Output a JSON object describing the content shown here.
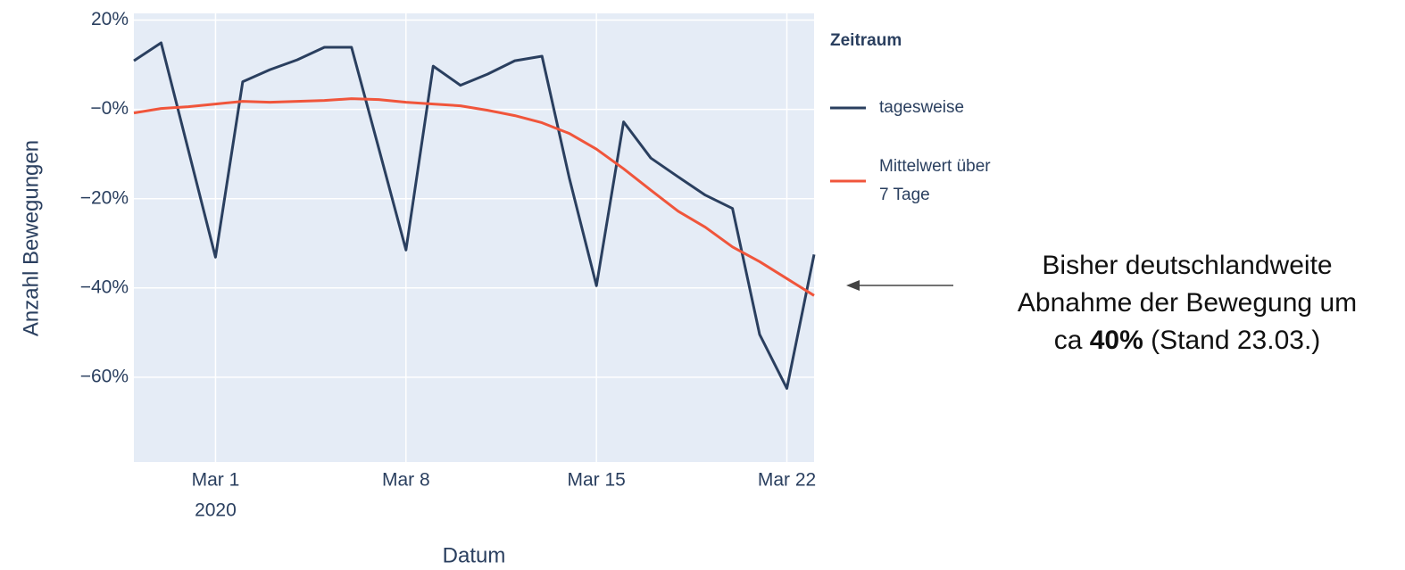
{
  "chart_data": {
    "type": "line",
    "x": [
      "2020-02-27",
      "2020-02-28",
      "2020-02-29",
      "2020-03-01",
      "2020-03-02",
      "2020-03-03",
      "2020-03-04",
      "2020-03-05",
      "2020-03-06",
      "2020-03-07",
      "2020-03-08",
      "2020-03-09",
      "2020-03-10",
      "2020-03-11",
      "2020-03-12",
      "2020-03-13",
      "2020-03-14",
      "2020-03-15",
      "2020-03-16",
      "2020-03-17",
      "2020-03-18",
      "2020-03-19",
      "2020-03-20",
      "2020-03-21",
      "2020-03-22",
      "2020-03-23"
    ],
    "series": [
      {
        "name": "tagesweise",
        "color": "#2a3f5f",
        "values": [
          10.9,
          14.9,
          -9.1,
          -33.1,
          6.2,
          8.9,
          11.1,
          13.9,
          13.9,
          -8.7,
          -31.5,
          9.7,
          5.4,
          7.9,
          10.9,
          11.9,
          -15.3,
          -39.5,
          -2.8,
          -10.9,
          -15.1,
          -19.2,
          -22.2,
          -50.4,
          -62.5,
          -32.5
        ]
      },
      {
        "name": "Mittelwert über 7 Tage",
        "color": "#f0553b",
        "values": [
          -0.8,
          0.2,
          0.6,
          1.2,
          1.8,
          1.6,
          1.8,
          2.0,
          2.4,
          2.2,
          1.6,
          1.2,
          0.8,
          -0.2,
          -1.4,
          -3.0,
          -5.4,
          -8.9,
          -13.3,
          -18.1,
          -22.8,
          -26.4,
          -30.8,
          -34.1,
          -37.9,
          -41.7
        ]
      }
    ],
    "xlim": [
      "2020-02-27",
      "2020-03-23"
    ],
    "xticks": [
      {
        "value": "2020-03-01",
        "label": "Mar 1"
      },
      {
        "value": "2020-03-08",
        "label": "Mar 8"
      },
      {
        "value": "2020-03-15",
        "label": "Mar 15"
      },
      {
        "value": "2020-03-22",
        "label": "Mar 22"
      }
    ],
    "xtick_year": "2020",
    "ylim": [
      -79,
      21.5
    ],
    "yticks": [
      {
        "value": 20,
        "label": "20%"
      },
      {
        "value": 0,
        "label": "−0%"
      },
      {
        "value": -20,
        "label": "−20%"
      },
      {
        "value": -40,
        "label": "−40%"
      },
      {
        "value": -60,
        "label": "−60%"
      }
    ],
    "xlabel": "Datum",
    "ylabel": "Anzahl Bewegungen",
    "legend_title": "Zeitraum",
    "grid": true,
    "annotation": {
      "lines": [
        "Bisher deutschlandweite",
        "Abnahme der Bewegung um"
      ],
      "last_line": [
        "ca",
        "40%",
        "(Stand 23.03.)"
      ]
    }
  }
}
